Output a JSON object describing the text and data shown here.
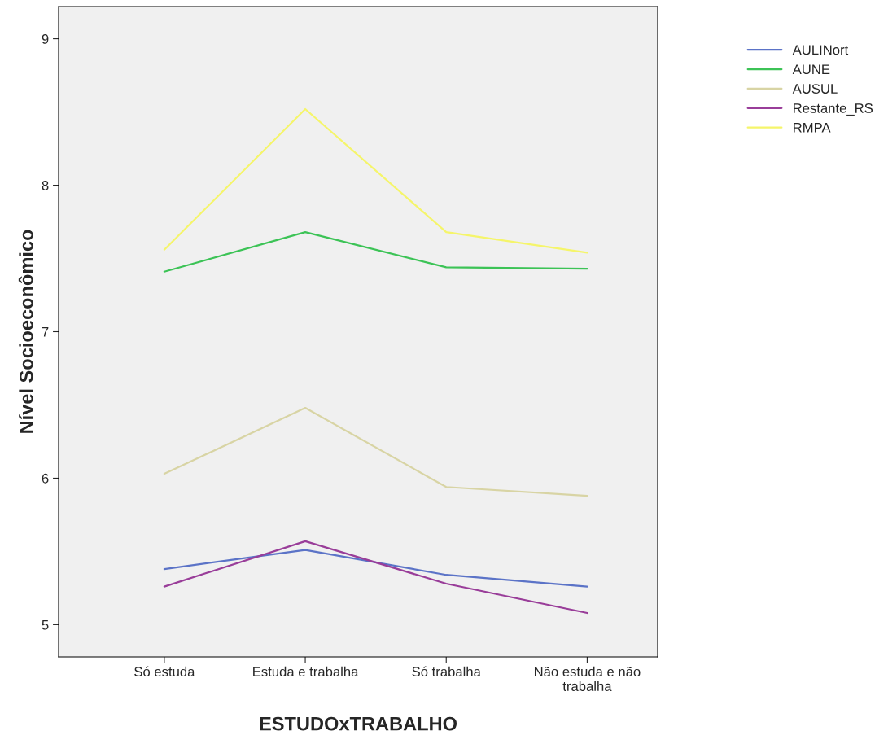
{
  "chart_data": {
    "type": "line",
    "xlabel": "ESTUDOxTRABALHO",
    "ylabel": "Nível Socioeconômico",
    "categories": [
      "Só estuda",
      "Estuda e trabalha",
      "Só trabalha",
      "Não estuda e não\ntrabalha"
    ],
    "ylim": [
      4.78,
      9.22
    ],
    "yticks": [
      5,
      6,
      7,
      8,
      9
    ],
    "grid": false,
    "legend": "top right",
    "marker": "none",
    "line_style": "solid",
    "series": [
      {
        "name": "AULINort",
        "color": "#5b73c7",
        "values": [
          5.38,
          5.51,
          5.34,
          5.26
        ]
      },
      {
        "name": "AUNE",
        "color": "#3cc356",
        "values": [
          7.41,
          7.68,
          7.44,
          7.43
        ]
      },
      {
        "name": "AUSUL",
        "color": "#d8d4a4",
        "values": [
          6.03,
          6.48,
          5.94,
          5.88
        ]
      },
      {
        "name": "Restante_RS",
        "color": "#993d99",
        "values": [
          5.26,
          5.57,
          5.28,
          5.08
        ]
      },
      {
        "name": "RMPA",
        "color": "#f5f56a",
        "values": [
          7.56,
          8.52,
          7.68,
          7.54
        ]
      }
    ]
  }
}
